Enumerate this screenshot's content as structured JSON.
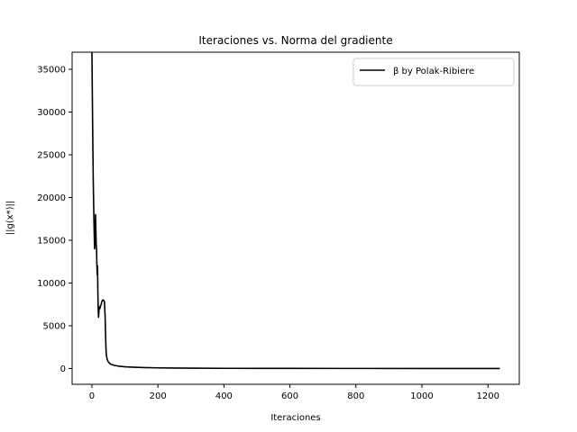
{
  "chart_data": {
    "type": "line",
    "title": "Iteraciones vs. Norma del gradiente",
    "xlabel": "Iteraciones",
    "ylabel": "||g(x*)||",
    "xlim": [
      -60,
      1295
    ],
    "ylim": [
      -1850,
      37000
    ],
    "xticks": [
      0,
      200,
      400,
      600,
      800,
      1000,
      1200
    ],
    "yticks": [
      0,
      5000,
      10000,
      15000,
      20000,
      25000,
      30000,
      35000
    ],
    "grid": false,
    "legend_position": "top-right",
    "series": [
      {
        "name": "β by Polak-Ribiere",
        "color": "#000000",
        "x": [
          0,
          2,
          4,
          6,
          8,
          10,
          11,
          12,
          13,
          14,
          15,
          16,
          17,
          18,
          19,
          20,
          21,
          22,
          24,
          26,
          28,
          30,
          32,
          35,
          38,
          40,
          42,
          43,
          44,
          45,
          46,
          48,
          50,
          55,
          60,
          70,
          80,
          100,
          130,
          160,
          200,
          250,
          300,
          400,
          500,
          600,
          800,
          1000,
          1236
        ],
        "y": [
          37000,
          29000,
          22000,
          17500,
          14000,
          15500,
          18000,
          16000,
          14500,
          14000,
          12200,
          11000,
          12000,
          9000,
          7000,
          6000,
          6500,
          7200,
          7000,
          7300,
          7500,
          7800,
          8000,
          8000,
          7800,
          6000,
          3000,
          2000,
          1500,
          1300,
          1100,
          900,
          750,
          550,
          450,
          350,
          280,
          200,
          140,
          100,
          70,
          50,
          35,
          20,
          12,
          8,
          5,
          3,
          2
        ]
      }
    ]
  }
}
